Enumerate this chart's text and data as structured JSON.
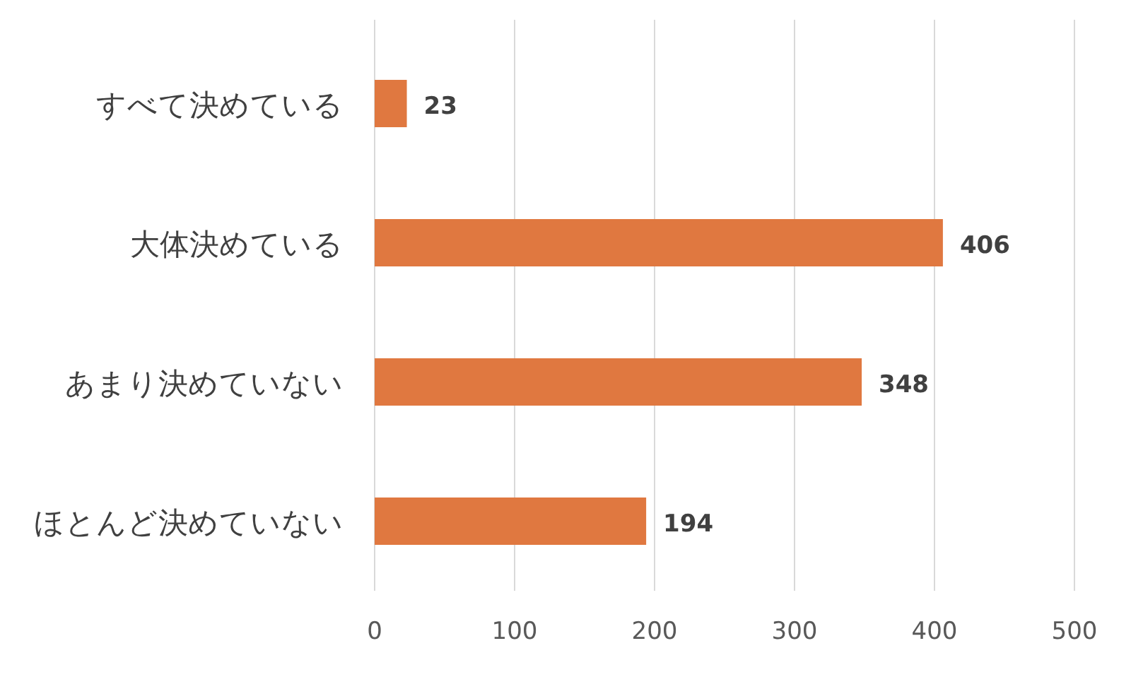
{
  "chart_data": {
    "type": "bar",
    "orientation": "horizontal",
    "categories": [
      "すべて決めている",
      "大体決めている",
      "あまり決めていない",
      "ほとんど決めていない"
    ],
    "values": [
      23,
      406,
      348,
      194
    ],
    "color": "#e07840",
    "xlim": [
      0,
      500
    ],
    "xticks": [
      0,
      100,
      200,
      300,
      400,
      500
    ],
    "grid": "x",
    "data_labels": true
  }
}
